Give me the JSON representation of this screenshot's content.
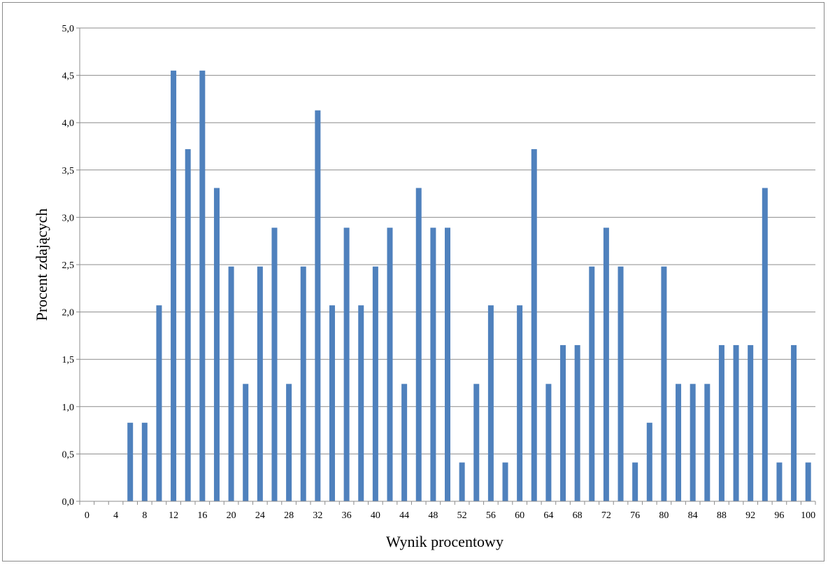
{
  "chart_data": {
    "type": "bar",
    "xlabel": "Wynik procentowy",
    "ylabel": "Procent zdających",
    "ylim": [
      0,
      5
    ],
    "y_ticks": [
      "0,0",
      "0,5",
      "1,0",
      "1,5",
      "2,0",
      "2,5",
      "3,0",
      "3,5",
      "4,0",
      "4,5",
      "5,0"
    ],
    "x_tick_labels": [
      "0",
      "4",
      "8",
      "12",
      "16",
      "20",
      "24",
      "28",
      "32",
      "36",
      "40",
      "44",
      "48",
      "52",
      "56",
      "60",
      "64",
      "68",
      "72",
      "76",
      "80",
      "84",
      "88",
      "92",
      "96",
      "100"
    ],
    "categories": [
      0,
      2,
      4,
      6,
      8,
      10,
      12,
      14,
      16,
      18,
      20,
      22,
      24,
      26,
      28,
      30,
      32,
      34,
      36,
      38,
      40,
      42,
      44,
      46,
      48,
      50,
      52,
      54,
      56,
      58,
      60,
      62,
      64,
      66,
      68,
      70,
      72,
      74,
      76,
      78,
      80,
      82,
      84,
      86,
      88,
      90,
      92,
      94,
      96,
      98,
      100
    ],
    "values": [
      0,
      0,
      0,
      0.83,
      0.83,
      2.07,
      4.55,
      3.72,
      4.55,
      3.31,
      2.48,
      1.24,
      2.48,
      2.89,
      1.24,
      2.48,
      4.13,
      2.07,
      2.89,
      2.07,
      2.48,
      2.89,
      1.24,
      3.31,
      2.89,
      2.89,
      0.41,
      1.24,
      2.07,
      0.41,
      2.07,
      3.72,
      1.24,
      1.65,
      1.65,
      2.48,
      2.89,
      2.48,
      0.41,
      0.83,
      2.48,
      1.24,
      1.24,
      1.24,
      1.65,
      1.65,
      1.65,
      3.31,
      0.41,
      1.65,
      0.41
    ],
    "grid": true,
    "bar_color": "#4f81bd"
  }
}
